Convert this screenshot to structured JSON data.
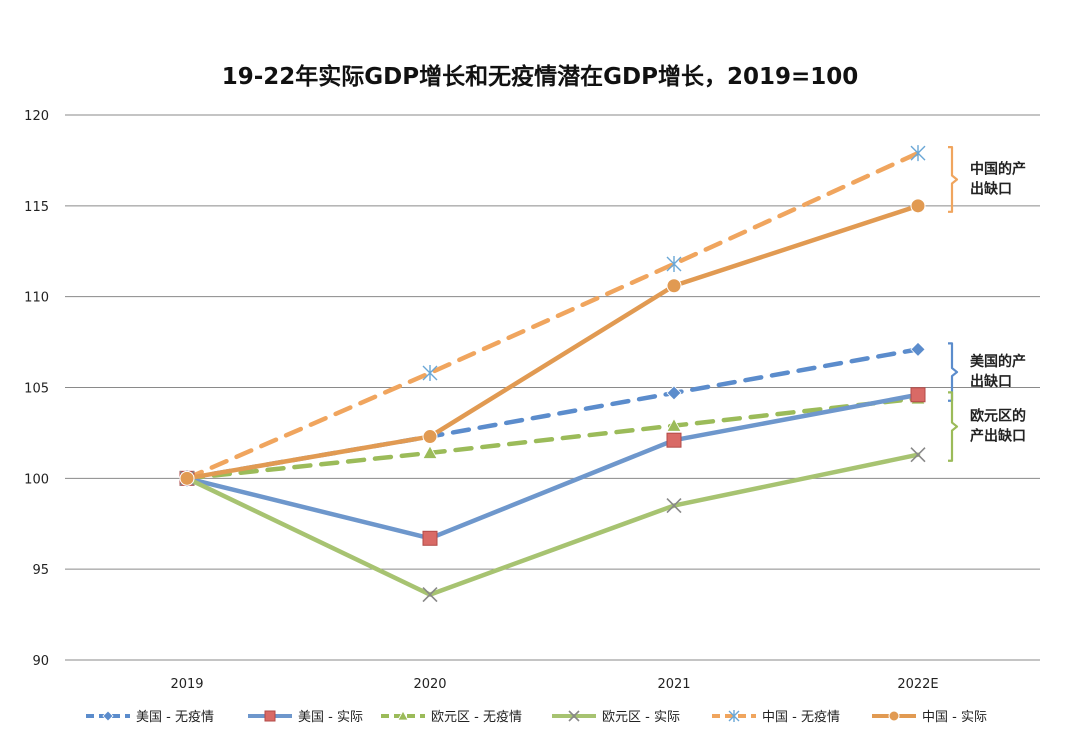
{
  "chart_data": {
    "type": "line",
    "title": "19-22年实际GDP增长和无疫情潜在GDP增长，2019=100",
    "xlabel": "",
    "ylabel": "",
    "categories": [
      "2019",
      "2020",
      "2021",
      "2022E"
    ],
    "ylim": [
      90,
      120
    ],
    "yticks": [
      90,
      95,
      100,
      105,
      110,
      115,
      120
    ],
    "grid": true,
    "legend_position": "bottom",
    "series": [
      {
        "name": "美国 - 无疫情",
        "values": [
          100,
          102.3,
          104.7,
          107.1
        ],
        "color": "#5b8ccc",
        "style": "dashed",
        "marker": "diamond"
      },
      {
        "name": "美国 - 实际",
        "values": [
          100,
          96.7,
          102.1,
          104.6
        ],
        "color": "#6e97cc",
        "style": "solid",
        "marker": "square",
        "marker_color": "#d96a66"
      },
      {
        "name": "欧元区 - 无疫情",
        "values": [
          100,
          101.4,
          102.9,
          104.4
        ],
        "color": "#9bbb59",
        "style": "dashed",
        "marker": "triangle"
      },
      {
        "name": "欧元区 - 实际",
        "values": [
          100,
          93.6,
          98.5,
          101.3
        ],
        "color": "#a7c371",
        "style": "solid",
        "marker": "x",
        "marker_color": "#888888"
      },
      {
        "name": "中国 - 无疫情",
        "values": [
          100,
          105.8,
          111.8,
          117.9
        ],
        "color": "#f0a55e",
        "style": "dashed",
        "marker": "star",
        "marker_color": "#6aa7d6"
      },
      {
        "name": "中国 - 实际",
        "values": [
          100,
          102.3,
          110.6,
          115.0
        ],
        "color": "#e19a52",
        "style": "solid",
        "marker": "circle"
      }
    ],
    "annotations": [
      {
        "text_lines": [
          "中国的产",
          "出缺口"
        ],
        "range": [
          115.0,
          117.9
        ],
        "color": "#f0a55e"
      },
      {
        "text_lines": [
          "美国的产",
          "出缺口"
        ],
        "range": [
          104.6,
          107.1
        ],
        "color": "#5b8ccc"
      },
      {
        "text_lines": [
          "欧元区的",
          "产出缺口"
        ],
        "range": [
          101.3,
          104.4
        ],
        "color": "#9bbb59"
      }
    ]
  }
}
